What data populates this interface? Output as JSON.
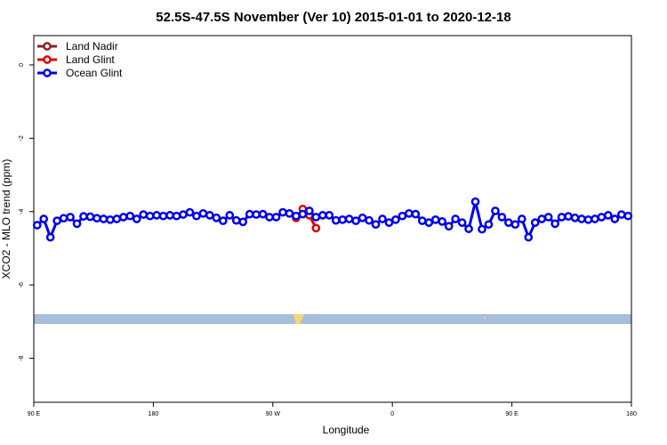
{
  "chart_data": {
    "type": "line",
    "title": "52.5S-47.5S November (Ver 10)   2015-01-01 to 2020-12-18",
    "x_label": "Longitude",
    "y_label": "XCO2 - MLO trend (ppm)",
    "xlim": [
      90,
      540
    ],
    "ylim": [
      -9.2,
      0.8
    ],
    "xticks": [
      {
        "value": 90,
        "label": "90 E"
      },
      180,
      {
        "value": 270,
        "label": "90 W"
      },
      {
        "value": 360,
        "label": "0"
      },
      {
        "value": 450,
        "label": "90 E"
      },
      {
        "value": 540,
        "label": "180"
      }
    ],
    "yticks": [
      0,
      -2,
      -4,
      -6,
      -8
    ],
    "legend": "top-left",
    "series": [
      {
        "name": "Land Nadir",
        "color": "#8b2323",
        "x": [],
        "values": []
      },
      {
        "name": "Land Glint",
        "color": "#e00000",
        "x": [
          287.5,
          292.5,
          297.5,
          302.5
        ],
        "values": [
          -4.17,
          -3.93,
          -4.1,
          -4.45
        ]
      },
      {
        "name": "Ocean Glint",
        "color": "#0000ee",
        "x": [
          92.5,
          97.5,
          102.5,
          107.5,
          112.5,
          117.5,
          122.5,
          127.5,
          132.5,
          137.5,
          142.5,
          147.5,
          152.5,
          157.5,
          162.5,
          167.5,
          172.5,
          177.5,
          182.5,
          187.5,
          192.5,
          197.5,
          202.5,
          207.5,
          212.5,
          217.5,
          222.5,
          227.5,
          232.5,
          237.5,
          242.5,
          247.5,
          252.5,
          257.5,
          262.5,
          267.5,
          272.5,
          277.5,
          282.5,
          287.5,
          292.5,
          297.5,
          302.5,
          307.5,
          312.5,
          317.5,
          322.5,
          327.5,
          332.5,
          337.5,
          342.5,
          347.5,
          352.5,
          357.5,
          362.5,
          367.5,
          372.5,
          377.5,
          382.5,
          387.5,
          392.5,
          397.5,
          402.5,
          407.5,
          412.5,
          417.5,
          422.5,
          427.5,
          432.5,
          437.5,
          442.5,
          447.5,
          452.5,
          457.5,
          462.5,
          467.5,
          472.5,
          477.5,
          482.5,
          487.5,
          492.5,
          497.5,
          502.5,
          507.5,
          512.5,
          517.5,
          522.5,
          527.5,
          532.5,
          537.5
        ],
        "values": [
          -4.37,
          -4.2,
          -4.7,
          -4.25,
          -4.18,
          -4.15,
          -4.33,
          -4.13,
          -4.14,
          -4.18,
          -4.2,
          -4.22,
          -4.2,
          -4.15,
          -4.12,
          -4.2,
          -4.08,
          -4.12,
          -4.1,
          -4.12,
          -4.1,
          -4.12,
          -4.08,
          -4.02,
          -4.12,
          -4.05,
          -4.1,
          -4.17,
          -4.25,
          -4.1,
          -4.24,
          -4.28,
          -4.07,
          -4.08,
          -4.07,
          -4.15,
          -4.15,
          -4.02,
          -4.05,
          -4.12,
          -4.07,
          -3.98,
          -4.15,
          -4.1,
          -4.1,
          -4.24,
          -4.22,
          -4.2,
          -4.25,
          -4.17,
          -4.24,
          -4.35,
          -4.2,
          -4.3,
          -4.22,
          -4.12,
          -4.05,
          -4.07,
          -4.25,
          -4.3,
          -4.22,
          -4.27,
          -4.4,
          -4.2,
          -4.3,
          -4.47,
          -3.73,
          -4.48,
          -4.35,
          -3.98,
          -4.15,
          -4.3,
          -4.35,
          -4.2,
          -4.7,
          -4.3,
          -4.2,
          -4.15,
          -4.33,
          -4.15,
          -4.13,
          -4.17,
          -4.2,
          -4.22,
          -4.2,
          -4.15,
          -4.1,
          -4.2,
          -4.08,
          -4.12
        ]
      }
    ]
  }
}
